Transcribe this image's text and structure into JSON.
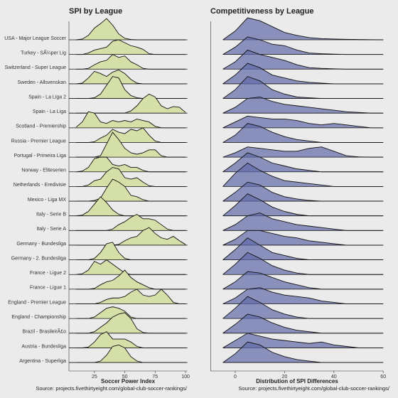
{
  "chart_data": [
    {
      "type": "ridgeline",
      "title": "SPI by League",
      "x_label": "Soccer Power Index",
      "source": "Source: projects.fivethirtyeight.com/global-club-soccer-rankings/",
      "color": "#d4e0a8",
      "line_color": "#111111",
      "baseline_full": true,
      "xlim": [
        4,
        101.5
      ],
      "xticks": [
        25,
        50,
        75,
        100
      ],
      "x": [
        10,
        15,
        20,
        25,
        30,
        35,
        40,
        45,
        50,
        55,
        60,
        65,
        70,
        75,
        80,
        85,
        90,
        95,
        100
      ],
      "series": [
        {
          "name": "USA - Major League Soccer",
          "values": [
            0,
            0.05,
            0.3,
            0.8,
            1.1,
            1.45,
            1.0,
            0.4,
            0.1,
            0.02,
            0,
            0,
            0,
            0,
            0,
            0,
            0,
            0,
            0
          ]
        },
        {
          "name": "Turkey - SÃ¼per Lig",
          "values": [
            0,
            0,
            0.1,
            0.3,
            0.4,
            0.5,
            0.9,
            1.0,
            0.8,
            0.6,
            0.5,
            0.35,
            0.05,
            0,
            0,
            0,
            0,
            0,
            0
          ]
        },
        {
          "name": "Switzerland - Super League",
          "values": [
            0,
            0,
            0.05,
            0.3,
            0.5,
            0.6,
            1.0,
            0.8,
            0.9,
            0.5,
            0.3,
            0.05,
            0,
            0,
            0,
            0,
            0,
            0,
            0
          ]
        },
        {
          "name": "Sweden - Allsvenskan",
          "values": [
            0,
            0.05,
            0.4,
            0.85,
            0.7,
            0.5,
            0.8,
            0.95,
            0.7,
            0.3,
            0.05,
            0,
            0,
            0,
            0,
            0,
            0,
            0,
            0
          ]
        },
        {
          "name": "Spain - La Liga 2",
          "values": [
            0,
            0,
            0,
            0.05,
            0.3,
            0.9,
            1.5,
            1.4,
            0.6,
            0.2,
            0.05,
            0,
            0,
            0,
            0,
            0,
            0,
            0,
            0
          ]
        },
        {
          "name": "Spain - La Liga",
          "values": [
            0,
            0,
            0,
            0,
            0,
            0,
            0,
            0,
            0,
            0.15,
            0.5,
            1.0,
            1.3,
            1.1,
            0.5,
            0.3,
            0.45,
            0.4,
            0.05
          ]
        },
        {
          "name": "Scotland - Premiership",
          "values": [
            0.05,
            0.4,
            1.1,
            1.0,
            0.4,
            0.3,
            0.5,
            0.4,
            0.5,
            0.4,
            0.6,
            0.5,
            0.4,
            0.1,
            0,
            0,
            0,
            0,
            0
          ]
        },
        {
          "name": "Russia - Premier League",
          "values": [
            0,
            0,
            0,
            0.05,
            0.3,
            0.5,
            0.9,
            0.7,
            0.6,
            0.9,
            0.8,
            1.0,
            0.5,
            0.1,
            0,
            0,
            0,
            0,
            0
          ]
        },
        {
          "name": "Portugal - Primeira Liga",
          "values": [
            0,
            0,
            0,
            0,
            0.1,
            0.9,
            1.7,
            1.2,
            0.6,
            0.3,
            0.2,
            0.3,
            0.5,
            0.5,
            0.1,
            0,
            0,
            0,
            0
          ]
        },
        {
          "name": "Norway - Eliteserien",
          "values": [
            0,
            0.05,
            0.3,
            0.9,
            1.0,
            1.0,
            0.5,
            0.4,
            0.5,
            0.3,
            0.3,
            0.1,
            0,
            0,
            0,
            0,
            0,
            0,
            0
          ]
        },
        {
          "name": "Netherlands - Eredivisie",
          "values": [
            0,
            0,
            0.1,
            0.4,
            0.5,
            1.0,
            1.3,
            1.2,
            0.6,
            0.5,
            0.6,
            0.3,
            0.05,
            0,
            0,
            0,
            0,
            0,
            0
          ]
        },
        {
          "name": "Mexico - Liga MX",
          "values": [
            0,
            0,
            0,
            0.05,
            0.2,
            0.9,
            1.5,
            1.3,
            1.0,
            0.4,
            0.3,
            0.1,
            0,
            0,
            0,
            0,
            0,
            0,
            0
          ]
        },
        {
          "name": "Italy - Serie B",
          "values": [
            0,
            0.05,
            0.3,
            0.8,
            1.3,
            0.9,
            0.4,
            0.1,
            0,
            0,
            0,
            0,
            0,
            0,
            0,
            0,
            0,
            0,
            0
          ]
        },
        {
          "name": "Italy - Serie A",
          "values": [
            0,
            0,
            0,
            0,
            0,
            0,
            0.1,
            0.4,
            0.6,
            0.9,
            1.1,
            0.8,
            0.8,
            0.7,
            0.4,
            0.1,
            0,
            0,
            0
          ]
        },
        {
          "name": "Germany - Bundesliga",
          "values": [
            0,
            0,
            0,
            0,
            0,
            0,
            0,
            0.05,
            0.3,
            0.5,
            0.6,
            1.0,
            1.2,
            0.8,
            0.5,
            0.4,
            0.6,
            0.3,
            0.05
          ]
        },
        {
          "name": "Germany - 2. Bundesliga",
          "values": [
            0,
            0,
            0,
            0.1,
            0.5,
            1.1,
            1.2,
            0.5,
            0.1,
            0,
            0,
            0,
            0,
            0,
            0,
            0,
            0,
            0,
            0
          ]
        },
        {
          "name": "France - Ligue 2",
          "values": [
            0,
            0.05,
            0.3,
            0.9,
            0.7,
            1.0,
            0.7,
            0.4,
            0.1,
            0,
            0,
            0,
            0,
            0,
            0,
            0,
            0,
            0,
            0
          ]
        },
        {
          "name": "France - Ligue 1",
          "values": [
            0,
            0,
            0,
            0.05,
            0.3,
            0.5,
            0.6,
            0.9,
            1.3,
            0.8,
            0.5,
            0.3,
            0.1,
            0,
            0,
            0,
            0,
            0,
            0
          ]
        },
        {
          "name": "England - Premier League",
          "values": [
            0,
            0,
            0,
            0,
            0.1,
            0.3,
            0.4,
            0.4,
            0.5,
            0.8,
            1.0,
            0.6,
            0.5,
            0.6,
            1.0,
            0.6,
            0.1,
            0,
            0
          ]
        },
        {
          "name": "England - Championship",
          "values": [
            0,
            0,
            0,
            0.1,
            0.4,
            0.7,
            0.8,
            0.7,
            0.5,
            0.1,
            0,
            0,
            0,
            0,
            0,
            0,
            0,
            0,
            0
          ]
        },
        {
          "name": "Brazil - BrasileirÃ£o",
          "values": [
            0,
            0,
            0,
            0.1,
            0.4,
            0.7,
            1.1,
            1.3,
            1.4,
            1.0,
            0.3,
            0.05,
            0,
            0,
            0,
            0,
            0,
            0,
            0
          ]
        },
        {
          "name": "Austria - Bundesliga",
          "values": [
            0,
            0,
            0.05,
            0.4,
            0.9,
            1.1,
            0.6,
            0.6,
            0.6,
            0.4,
            0.1,
            0,
            0,
            0,
            0,
            0,
            0,
            0,
            0
          ]
        },
        {
          "name": "Argentina - Superliga",
          "values": [
            0,
            0,
            0,
            0,
            0.1,
            0.5,
            1.1,
            1.2,
            1.0,
            0.4,
            0.1,
            0,
            0,
            0,
            0,
            0,
            0,
            0,
            0
          ]
        }
      ]
    },
    {
      "type": "ridgeline",
      "title": "Competitiveness by League",
      "x_label": "Distribution of SPI Differences",
      "source": "Source: projects.fivethirtyeight.com/global-club-soccer-rankings/",
      "color": "#5f6aa8",
      "line_color": "#111111",
      "baseline_full": false,
      "xlim": [
        -10,
        60
      ],
      "xticks": [
        0,
        20,
        40,
        60
      ],
      "x": [
        -5,
        0,
        5,
        10,
        15,
        20,
        25,
        30,
        35,
        40,
        45,
        50,
        55,
        60
      ],
      "series": [
        {
          "values": [
            0,
            0.6,
            1.5,
            1.3,
            0.9,
            0.5,
            0.3,
            0.15,
            0.08,
            0.05,
            0.03,
            0.02,
            0.01,
            0
          ]
        },
        {
          "values": [
            0,
            0.5,
            1.2,
            1.0,
            0.7,
            0.6,
            0.3,
            0.1,
            0.05,
            0.02,
            0,
            0,
            0,
            0
          ]
        },
        {
          "values": [
            0,
            0.5,
            1.3,
            1.0,
            0.8,
            0.6,
            0.3,
            0.1,
            0.05,
            0.02,
            0,
            0,
            0,
            0
          ]
        },
        {
          "values": [
            0,
            0.6,
            1.4,
            1.1,
            0.6,
            0.4,
            0.2,
            0.1,
            0.05,
            0,
            0,
            0,
            0,
            0
          ]
        },
        {
          "values": [
            0,
            0.6,
            1.5,
            1.2,
            0.6,
            0.3,
            0.1,
            0.05,
            0,
            0,
            0,
            0,
            0,
            0
          ]
        },
        {
          "values": [
            0,
            0.4,
            1.0,
            1.1,
            0.8,
            0.6,
            0.5,
            0.4,
            0.3,
            0.2,
            0.1,
            0.05,
            0,
            0
          ]
        },
        {
          "values": [
            0,
            0.4,
            0.8,
            0.7,
            0.6,
            0.6,
            0.5,
            0.3,
            0.2,
            0.3,
            0.2,
            0.1,
            0,
            0
          ]
        },
        {
          "values": [
            0,
            0.5,
            1.3,
            1.1,
            0.7,
            0.4,
            0.2,
            0.1,
            0,
            0,
            0,
            0,
            0,
            0
          ]
        },
        {
          "values": [
            0,
            0.3,
            0.7,
            0.6,
            0.5,
            0.4,
            0.4,
            0.6,
            0.7,
            0.4,
            0.1,
            0.02,
            0,
            0
          ]
        },
        {
          "values": [
            0,
            0.6,
            1.3,
            1.0,
            0.6,
            0.4,
            0.2,
            0.1,
            0,
            0,
            0,
            0,
            0,
            0
          ]
        },
        {
          "values": [
            0,
            0.9,
            1.6,
            1.1,
            0.7,
            0.4,
            0.3,
            0.2,
            0.1,
            0,
            0,
            0,
            0,
            0
          ]
        },
        {
          "values": [
            0,
            0.6,
            1.3,
            1.1,
            0.6,
            0.3,
            0.15,
            0.05,
            0,
            0,
            0,
            0,
            0,
            0
          ]
        },
        {
          "values": [
            0,
            0.7,
            1.5,
            1.1,
            0.6,
            0.3,
            0.1,
            0,
            0,
            0,
            0,
            0,
            0,
            0
          ]
        },
        {
          "values": [
            0,
            0.4,
            1.0,
            1.2,
            0.8,
            0.6,
            0.4,
            0.3,
            0.2,
            0.1,
            0,
            0,
            0,
            0
          ]
        },
        {
          "values": [
            0,
            0.4,
            1.0,
            1.0,
            0.8,
            0.6,
            0.5,
            0.3,
            0.2,
            0.1,
            0,
            0,
            0,
            0
          ]
        },
        {
          "values": [
            0,
            0.7,
            1.5,
            1.0,
            0.5,
            0.3,
            0.1,
            0,
            0,
            0,
            0,
            0,
            0,
            0
          ]
        },
        {
          "values": [
            0,
            0.7,
            1.5,
            1.1,
            0.6,
            0.3,
            0.1,
            0,
            0,
            0,
            0,
            0,
            0,
            0
          ]
        },
        {
          "values": [
            0,
            0.5,
            1.2,
            1.1,
            0.8,
            0.5,
            0.3,
            0.1,
            0,
            0,
            0,
            0,
            0,
            0
          ]
        },
        {
          "values": [
            0,
            0.4,
            1.0,
            1.1,
            0.8,
            0.6,
            0.5,
            0.4,
            0.2,
            0.1,
            0,
            0,
            0,
            0
          ]
        },
        {
          "values": [
            0,
            0.7,
            1.5,
            1.1,
            0.6,
            0.3,
            0.1,
            0,
            0,
            0,
            0,
            0,
            0,
            0
          ]
        },
        {
          "values": [
            0,
            0.6,
            1.3,
            1.1,
            0.7,
            0.4,
            0.2,
            0.1,
            0,
            0,
            0,
            0,
            0,
            0
          ]
        },
        {
          "values": [
            0,
            0.5,
            1.0,
            0.8,
            0.6,
            0.5,
            0.4,
            0.3,
            0.4,
            0.2,
            0.1,
            0,
            0,
            0
          ]
        },
        {
          "values": [
            0,
            0.6,
            1.4,
            1.2,
            0.7,
            0.4,
            0.2,
            0.1,
            0,
            0,
            0,
            0,
            0,
            0
          ]
        }
      ]
    }
  ]
}
